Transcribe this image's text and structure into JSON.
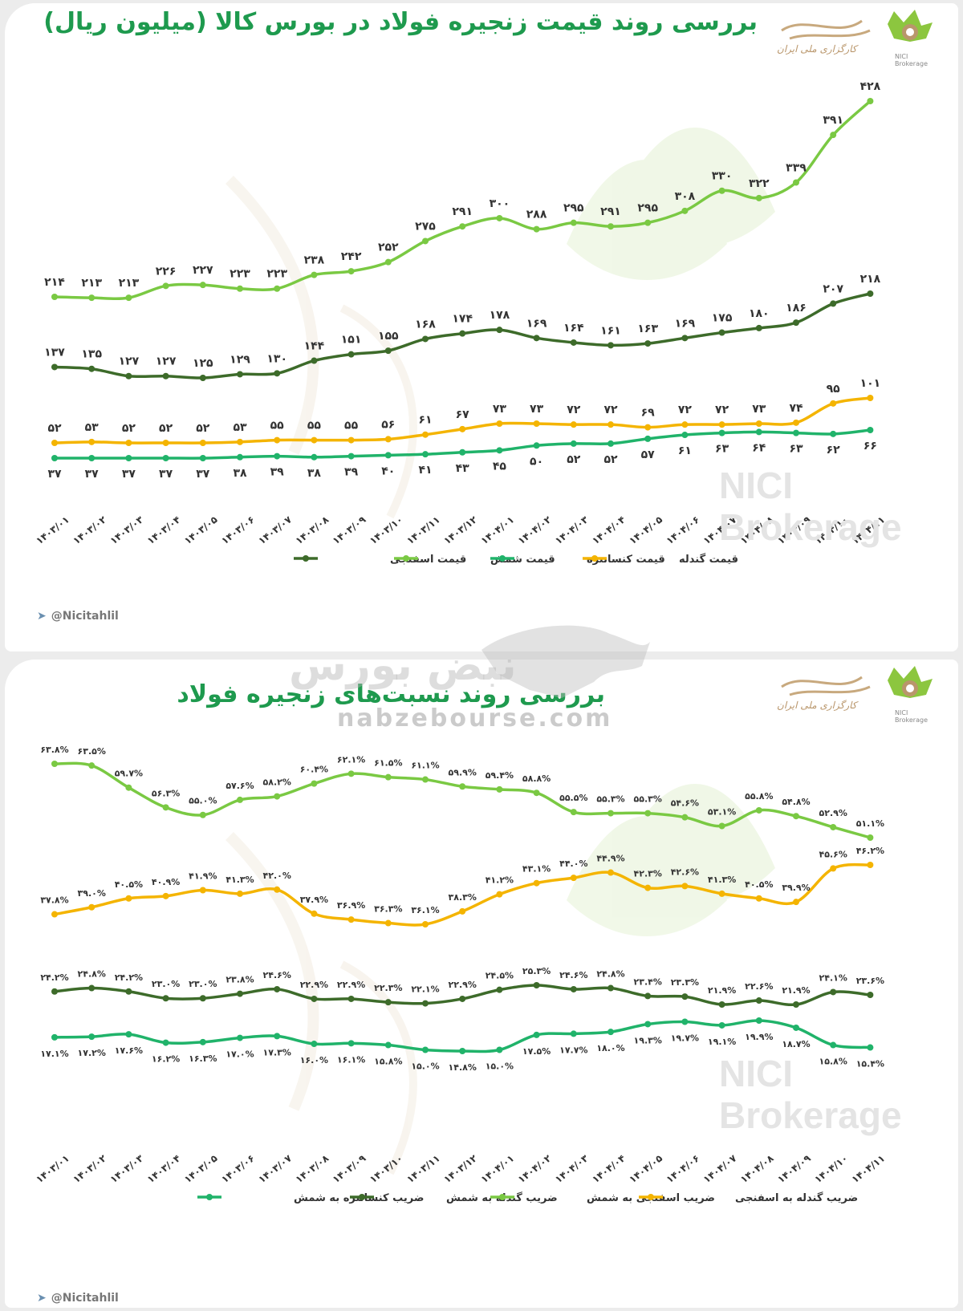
{
  "chart_data": [
    {
      "type": "line",
      "title": "بررسی روند قیمت زنجیره فولاد در بورس کالا (میلیون ریال)",
      "categories": [
        "۱۴۰۳/۰۱",
        "۱۴۰۳/۰۲",
        "۱۴۰۳/۰۳",
        "۱۴۰۳/۰۴",
        "۱۴۰۳/۰۵",
        "۱۴۰۳/۰۶",
        "۱۴۰۳/۰۷",
        "۱۴۰۳/۰۸",
        "۱۴۰۳/۰۹",
        "۱۴۰۳/۱۰",
        "۱۴۰۳/۱۱",
        "۱۴۰۳/۱۲",
        "۱۴۰۴/۰۱",
        "۱۴۰۴/۰۲",
        "۱۴۰۴/۰۳",
        "۱۴۰۴/۰۴",
        "۱۴۰۴/۰۵",
        "۱۴۰۴/۰۶",
        "۱۴۰۴/۰۷",
        "۱۴۰۴/۰۸",
        "۱۴۰۴/۰۹",
        "۱۴۰۴/۱۰",
        "۱۴۰۴/۱۱"
      ],
      "ylim": [
        20,
        440
      ],
      "series": [
        {
          "name": "قیمت شمش",
          "color": "#7ac943",
          "label_pos": "above",
          "values": [
            214,
            213,
            213,
            226,
            227,
            223,
            223,
            238,
            242,
            252,
            275,
            291,
            300,
            288,
            295,
            291,
            295,
            308,
            330,
            322,
            339,
            391,
            428
          ],
          "labels": [
            "۲۱۴",
            "۲۱۳",
            "۲۱۳",
            "۲۲۶",
            "۲۲۷",
            "۲۲۳",
            "۲۲۳",
            "۲۳۸",
            "۲۴۲",
            "۲۵۲",
            "۲۷۵",
            "۲۹۱",
            "۳۰۰",
            "۲۸۸",
            "۲۹۵",
            "۲۹۱",
            "۲۹۵",
            "۳۰۸",
            "۳۳۰",
            "۳۲۲",
            "۳۳۹",
            "۳۹۱",
            "۴۲۸"
          ]
        },
        {
          "name": "قیمت اسفنجی",
          "color": "#3d6b2a",
          "label_pos": "above",
          "values": [
            137,
            135,
            127,
            127,
            125,
            129,
            130,
            144,
            151,
            155,
            168,
            174,
            178,
            169,
            164,
            161,
            163,
            169,
            175,
            180,
            186,
            207,
            218
          ],
          "labels": [
            "۱۳۷",
            "۱۳۵",
            "۱۲۷",
            "۱۲۷",
            "۱۲۵",
            "۱۲۹",
            "۱۳۰",
            "۱۴۴",
            "۱۵۱",
            "۱۵۵",
            "۱۶۸",
            "۱۷۴",
            "۱۷۸",
            "۱۶۹",
            "۱۶۴",
            "۱۶۱",
            "۱۶۳",
            "۱۶۹",
            "۱۷۵",
            "۱۸۰",
            "۱۸۶",
            "۲۰۷",
            "۲۱۸"
          ]
        },
        {
          "name": "قیمت گندله",
          "color": "#f4b400",
          "label_pos": "above",
          "values": [
            52,
            53,
            52,
            52,
            52,
            53,
            55,
            55,
            55,
            56,
            61,
            67,
            73,
            73,
            72,
            72,
            69,
            72,
            72,
            73,
            74,
            95,
            101
          ],
          "labels": [
            "۵۲",
            "۵۳",
            "۵۲",
            "۵۲",
            "۵۲",
            "۵۳",
            "۵۵",
            "۵۵",
            "۵۵",
            "۵۶",
            "۶۱",
            "۶۷",
            "۷۳",
            "۷۳",
            "۷۲",
            "۷۲",
            "۶۹",
            "۷۲",
            "۷۲",
            "۷۳",
            "۷۴",
            "۹۵",
            "۱۰۱"
          ]
        },
        {
          "name": "قیمت کنسانتره",
          "color": "#20b36a",
          "label_pos": "below",
          "values": [
            37,
            37,
            37,
            37,
            37,
            38,
            39,
            38,
            39,
            40,
            41,
            43,
            45,
            50,
            52,
            52,
            57,
            61,
            63,
            64,
            63,
            62,
            66
          ],
          "labels": [
            "۳۷",
            "۳۷",
            "۳۷",
            "۳۷",
            "۳۷",
            "۳۸",
            "۳۹",
            "۳۸",
            "۳۹",
            "۴۰",
            "۴۱",
            "۴۳",
            "۴۵",
            "۵۰",
            "۵۲",
            "۵۲",
            "۵۷",
            "۶۱",
            "۶۳",
            "۶۴",
            "۶۳",
            "۶۲",
            "۶۶"
          ]
        }
      ],
      "legend": [
        "قیمت اسفنجی",
        "قیمت شمش",
        "قیمت کنسانتره",
        "قیمت گندله"
      ]
    },
    {
      "type": "line",
      "title": "بررسی روند نسبت‌های زنجیره فولاد",
      "categories": [
        "۱۴۰۳/۰۱",
        "۱۴۰۳/۰۲",
        "۱۴۰۳/۰۳",
        "۱۴۰۳/۰۴",
        "۱۴۰۳/۰۵",
        "۱۴۰۳/۰۶",
        "۱۴۰۳/۰۷",
        "۱۴۰۳/۰۸",
        "۱۴۰۳/۰۹",
        "۱۴۰۳/۱۰",
        "۱۴۰۳/۱۱",
        "۱۴۰۳/۱۲",
        "۱۴۰۴/۰۱",
        "۱۴۰۴/۰۲",
        "۱۴۰۴/۰۳",
        "۱۴۰۴/۰۴",
        "۱۴۰۴/۰۵",
        "۱۴۰۴/۰۶",
        "۱۴۰۴/۰۷",
        "۱۴۰۴/۰۸",
        "۱۴۰۴/۰۹",
        "۱۴۰۴/۱۰",
        "۱۴۰۴/۱۱"
      ],
      "series": [
        {
          "name": "ضریب اسفنجی به شمش",
          "color": "#7ac943",
          "label_pos": "above",
          "values": [
            63.8,
            63.5,
            59.7,
            56.3,
            55.0,
            57.6,
            58.2,
            60.4,
            62.1,
            61.5,
            61.1,
            59.9,
            59.4,
            58.8,
            55.5,
            55.3,
            55.3,
            54.6,
            53.1,
            55.8,
            54.8,
            52.9,
            51.1
          ],
          "labels": [
            "۶۳.۸%",
            "۶۳.۵%",
            "۵۹.۷%",
            "۵۶.۳%",
            "۵۵.۰%",
            "۵۷.۶%",
            "۵۸.۲%",
            "۶۰.۴%",
            "۶۲.۱%",
            "۶۱.۵%",
            "۶۱.۱%",
            "۵۹.۹%",
            "۵۹.۴%",
            "۵۸.۸%",
            "۵۵.۵%",
            "۵۵.۳%",
            "۵۵.۳%",
            "۵۴.۶%",
            "۵۳.۱%",
            "۵۵.۸%",
            "۵۴.۸%",
            "۵۲.۹%",
            "۵۱.۱%"
          ]
        },
        {
          "name": "ضریب گندله به اسفنجی",
          "color": "#f4b400",
          "label_pos": "above",
          "values": [
            37.8,
            39.0,
            40.5,
            40.9,
            41.9,
            41.3,
            42.0,
            37.9,
            36.9,
            36.3,
            36.1,
            38.3,
            41.2,
            43.1,
            44.0,
            44.9,
            42.3,
            42.6,
            41.3,
            40.5,
            39.9,
            45.6,
            46.2
          ],
          "labels": [
            "۳۷.۸%",
            "۳۹.۰%",
            "۴۰.۵%",
            "۴۰.۹%",
            "۴۱.۹%",
            "۴۱.۳%",
            "۴۲.۰%",
            "۳۷.۹%",
            "۳۶.۹%",
            "۳۶.۳%",
            "۳۶.۱%",
            "۳۸.۳%",
            "۴۱.۲%",
            "۴۳.۱%",
            "۴۴.۰%",
            "۴۴.۹%",
            "۴۲.۳%",
            "۴۲.۶%",
            "۴۱.۳%",
            "۴۰.۵%",
            "۳۹.۹%",
            "۴۵.۶%",
            "۴۶.۲%"
          ]
        },
        {
          "name": "ضریب گندله به شمش",
          "color": "#3d6b2a",
          "label_pos": "above",
          "values": [
            24.2,
            24.8,
            24.2,
            23.0,
            23.0,
            23.8,
            24.6,
            22.9,
            22.9,
            22.3,
            22.1,
            22.9,
            24.5,
            25.3,
            24.6,
            24.8,
            23.4,
            23.3,
            21.9,
            22.6,
            21.9,
            24.1,
            23.6
          ],
          "labels": [
            "۲۴.۲%",
            "۲۴.۸%",
            "۲۴.۲%",
            "۲۳.۰%",
            "۲۳.۰%",
            "۲۳.۸%",
            "۲۴.۶%",
            "۲۲.۹%",
            "۲۲.۹%",
            "۲۲.۳%",
            "۲۲.۱%",
            "۲۲.۹%",
            "۲۴.۵%",
            "۲۵.۳%",
            "۲۴.۶%",
            "۲۴.۸%",
            "۲۳.۴%",
            "۲۳.۳%",
            "۲۱.۹%",
            "۲۲.۶%",
            "۲۱.۹%",
            "۲۴.۱%",
            "۲۳.۶%"
          ]
        },
        {
          "name": "ضریب کنسانتره به شمش",
          "color": "#20b36a",
          "label_pos": "below",
          "values": [
            17.1,
            17.2,
            17.6,
            16.2,
            16.3,
            17.0,
            17.3,
            16.0,
            16.1,
            15.8,
            15.0,
            14.8,
            15.0,
            17.5,
            17.7,
            18.0,
            19.3,
            19.7,
            19.1,
            19.9,
            18.7,
            15.8,
            15.4
          ],
          "labels": [
            "۱۷.۱%",
            "۱۷.۲%",
            "۱۷.۶%",
            "۱۶.۲%",
            "۱۶.۳%",
            "۱۷.۰%",
            "۱۷.۳%",
            "۱۶.۰%",
            "۱۶.۱%",
            "۱۵.۸%",
            "۱۵.۰%",
            "۱۴.۸%",
            "۱۵.۰%",
            "۱۷.۵%",
            "۱۷.۷%",
            "۱۸.۰%",
            "۱۹.۳%",
            "۱۹.۷%",
            "۱۹.۱%",
            "۱۹.۹%",
            "۱۸.۷%",
            "۱۵.۸%",
            "۱۵.۴%"
          ]
        }
      ],
      "legend": [
        "ضریب کنسانتره به شمش",
        "ضریب گندله به شمش",
        "ضریب اسفنجی به شمش",
        "ضریب گندله به اسفنجی"
      ]
    }
  ],
  "handle": "@Nicitahlil",
  "brand": {
    "logo_text": "کارگزاری ملی ایران",
    "name_line1": "NICI",
    "name_line2": "Brokerage"
  },
  "watermark": {
    "nici": "NICI",
    "brokerage": "Brokerage"
  },
  "site_watermark": {
    "name": "نبض بورس",
    "domain": "nabzebourse.com"
  }
}
